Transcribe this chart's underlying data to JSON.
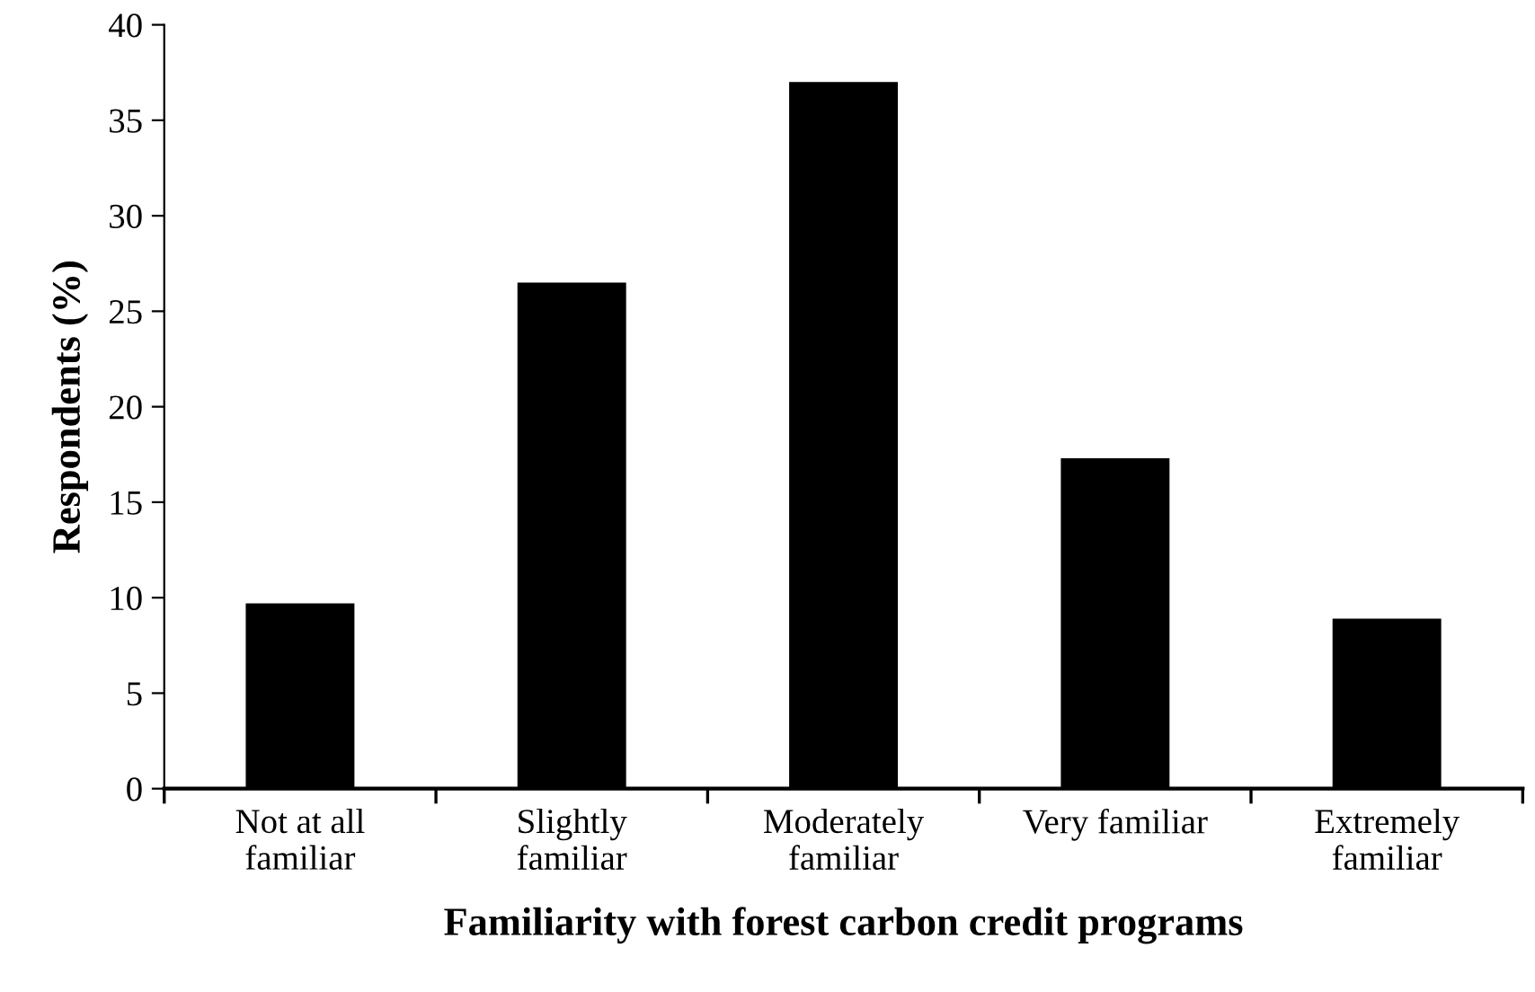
{
  "chart_data": {
    "type": "bar",
    "xlabel": "Familiarity with forest carbon credit programs",
    "ylabel": "Respondents (%)",
    "categories": [
      "Not at all\nfamiliar",
      "Slightly\nfamiliar",
      "Moderately\nfamiliar",
      "Very familiar",
      "Extremely\nfamiliar"
    ],
    "values": [
      9.7,
      26.5,
      37.0,
      17.3,
      8.9
    ],
    "color": "#000000",
    "ylim": [
      0,
      40
    ],
    "yticks": [
      0,
      5,
      10,
      15,
      20,
      25,
      30,
      35,
      40
    ],
    "grid": false,
    "legend": false
  }
}
